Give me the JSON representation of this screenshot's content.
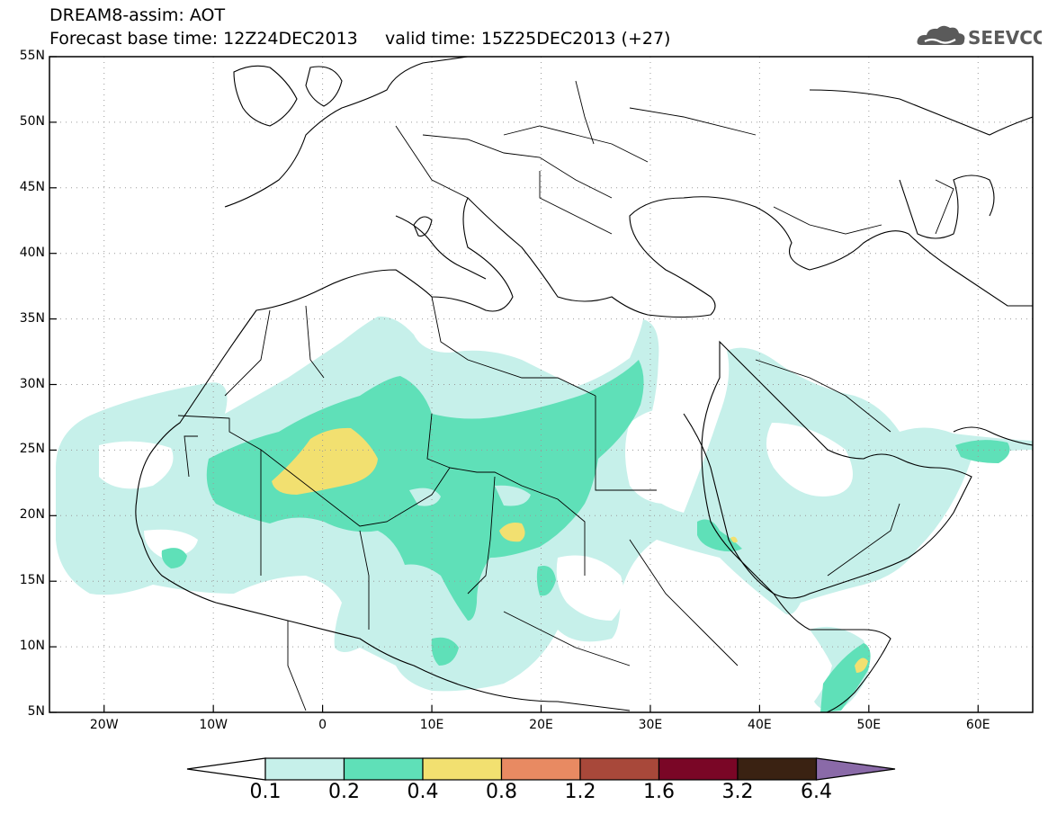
{
  "header": {
    "title": "DREAM8-assim: AOT",
    "subtitle_left": "Forecast base time: 12Z24DEC2013",
    "subtitle_right": "valid time: 15Z25DEC2013 (+27)"
  },
  "logo": {
    "text": "SEEVCCC",
    "icon": "cloud-icon"
  },
  "map": {
    "lon_range": [
      -25,
      65
    ],
    "lat_range": [
      5,
      55
    ],
    "lon_ticks": [
      {
        "lon": -20,
        "label": "20W"
      },
      {
        "lon": -10,
        "label": "10W"
      },
      {
        "lon": 0,
        "label": "0"
      },
      {
        "lon": 10,
        "label": "10E"
      },
      {
        "lon": 20,
        "label": "20E"
      },
      {
        "lon": 30,
        "label": "30E"
      },
      {
        "lon": 40,
        "label": "40E"
      },
      {
        "lon": 50,
        "label": "50E"
      },
      {
        "lon": 60,
        "label": "60E"
      }
    ],
    "lat_ticks": [
      {
        "lat": 55,
        "label": "55N"
      },
      {
        "lat": 50,
        "label": "50N"
      },
      {
        "lat": 45,
        "label": "45N"
      },
      {
        "lat": 40,
        "label": "40N"
      },
      {
        "lat": 35,
        "label": "35N"
      },
      {
        "lat": 30,
        "label": "30N"
      },
      {
        "lat": 25,
        "label": "25N"
      },
      {
        "lat": 20,
        "label": "20N"
      },
      {
        "lat": 15,
        "label": "15N"
      },
      {
        "lat": 10,
        "label": "10N"
      },
      {
        "lat": 5,
        "label": "5N"
      }
    ],
    "gridlines": true
  },
  "legend": {
    "thresholds": [
      "0.1",
      "0.2",
      "0.4",
      "0.8",
      "1.2",
      "1.6",
      "3.2",
      "6.4"
    ],
    "colors": [
      "#c6f0ea",
      "#5fe0b8",
      "#f2e070",
      "#e88a62",
      "#a8483a",
      "#7a0626",
      "#3a2212",
      "#8a6aa8"
    ]
  }
}
